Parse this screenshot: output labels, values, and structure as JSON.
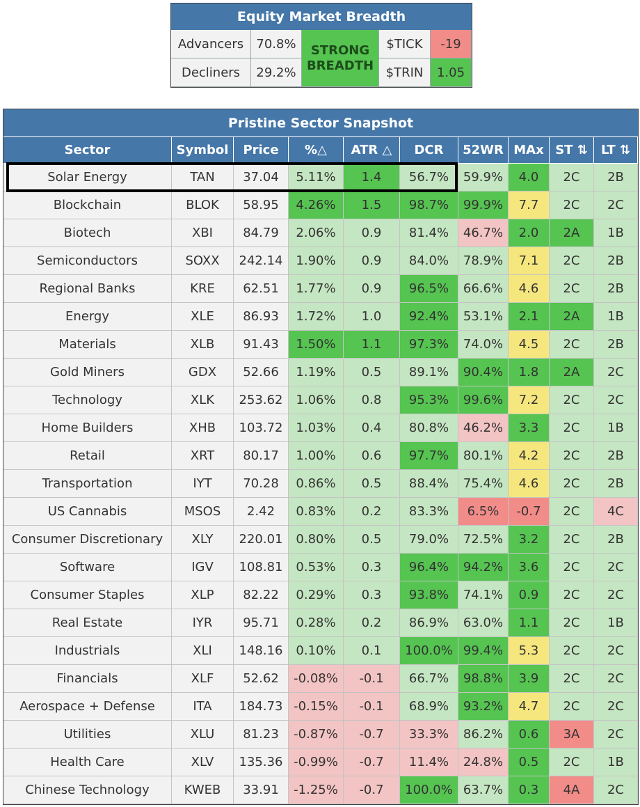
{
  "breadth": {
    "title": "Equity Market Breadth",
    "advancers_label": "Advancers",
    "advancers_value": "70.8%",
    "decliners_label": "Decliners",
    "decliners_value": "29.2%",
    "status_line1": "STRONG",
    "status_line2": "BREADTH",
    "tick_label": "$TICK",
    "tick_value": "-19",
    "trin_label": "$TRIN",
    "trin_value": "1.05"
  },
  "snapshot": {
    "title": "Pristine Sector Snapshot",
    "headers": [
      "Sector",
      "Symbol",
      "Price",
      "%△",
      "ATR △",
      "DCR",
      "52WR",
      "MAx",
      "ST ⇅",
      "LT ⇅"
    ],
    "rows": [
      {
        "sector": "Solar Energy",
        "symbol": "TAN",
        "price": "37.04",
        "pct": "5.11%",
        "atr": "1.4",
        "dcr": "56.7%",
        "wr": "59.9%",
        "max": "4.0",
        "st": "2C",
        "lt": "2B",
        "colors": [
          "lg",
          "g",
          "lg",
          "lg",
          "g",
          "lg",
          "lg"
        ]
      },
      {
        "sector": "Blockchain",
        "symbol": "BLOK",
        "price": "58.95",
        "pct": "4.26%",
        "atr": "1.5",
        "dcr": "98.7%",
        "wr": "99.9%",
        "max": "7.7",
        "st": "2C",
        "lt": "2C",
        "colors": [
          "g",
          "g",
          "g",
          "g",
          "y",
          "lg",
          "lg"
        ]
      },
      {
        "sector": "Biotech",
        "symbol": "XBI",
        "price": "84.79",
        "pct": "2.06%",
        "atr": "0.9",
        "dcr": "81.4%",
        "wr": "46.7%",
        "max": "2.0",
        "st": "2A",
        "lt": "1B",
        "colors": [
          "lg",
          "lg",
          "lg",
          "lr",
          "g",
          "g",
          "lg"
        ]
      },
      {
        "sector": "Semiconductors",
        "symbol": "SOXX",
        "price": "242.14",
        "pct": "1.90%",
        "atr": "0.9",
        "dcr": "84.0%",
        "wr": "78.9%",
        "max": "7.1",
        "st": "2C",
        "lt": "2B",
        "colors": [
          "lg",
          "lg",
          "lg",
          "lg",
          "y",
          "lg",
          "lg"
        ]
      },
      {
        "sector": "Regional Banks",
        "symbol": "KRE",
        "price": "62.51",
        "pct": "1.77%",
        "atr": "0.9",
        "dcr": "96.5%",
        "wr": "66.6%",
        "max": "4.6",
        "st": "2C",
        "lt": "2B",
        "colors": [
          "lg",
          "lg",
          "g",
          "lg",
          "y",
          "lg",
          "lg"
        ]
      },
      {
        "sector": "Energy",
        "symbol": "XLE",
        "price": "86.93",
        "pct": "1.72%",
        "atr": "1.0",
        "dcr": "92.4%",
        "wr": "53.1%",
        "max": "2.1",
        "st": "2A",
        "lt": "1B",
        "colors": [
          "lg",
          "lg",
          "g",
          "lg",
          "g",
          "g",
          "lg"
        ]
      },
      {
        "sector": "Materials",
        "symbol": "XLB",
        "price": "91.43",
        "pct": "1.50%",
        "atr": "1.1",
        "dcr": "97.3%",
        "wr": "74.0%",
        "max": "4.5",
        "st": "2C",
        "lt": "2B",
        "colors": [
          "g",
          "g",
          "g",
          "lg",
          "y",
          "lg",
          "lg"
        ]
      },
      {
        "sector": "Gold Miners",
        "symbol": "GDX",
        "price": "52.66",
        "pct": "1.19%",
        "atr": "0.5",
        "dcr": "89.1%",
        "wr": "90.4%",
        "max": "1.8",
        "st": "2A",
        "lt": "2C",
        "colors": [
          "lg",
          "lg",
          "lg",
          "g",
          "g",
          "g",
          "lg"
        ]
      },
      {
        "sector": "Technology",
        "symbol": "XLK",
        "price": "253.62",
        "pct": "1.06%",
        "atr": "0.8",
        "dcr": "95.3%",
        "wr": "99.6%",
        "max": "7.2",
        "st": "2C",
        "lt": "2C",
        "colors": [
          "lg",
          "lg",
          "g",
          "g",
          "y",
          "lg",
          "lg"
        ]
      },
      {
        "sector": "Home Builders",
        "symbol": "XHB",
        "price": "103.72",
        "pct": "1.03%",
        "atr": "0.4",
        "dcr": "80.8%",
        "wr": "46.2%",
        "max": "3.3",
        "st": "2C",
        "lt": "1B",
        "colors": [
          "lg",
          "lg",
          "lg",
          "lr",
          "g",
          "lg",
          "lg"
        ]
      },
      {
        "sector": "Retail",
        "symbol": "XRT",
        "price": "80.17",
        "pct": "1.00%",
        "atr": "0.6",
        "dcr": "97.7%",
        "wr": "80.1%",
        "max": "4.2",
        "st": "2C",
        "lt": "2B",
        "colors": [
          "lg",
          "lg",
          "g",
          "lg",
          "y",
          "lg",
          "lg"
        ]
      },
      {
        "sector": "Transportation",
        "symbol": "IYT",
        "price": "70.28",
        "pct": "0.86%",
        "atr": "0.5",
        "dcr": "88.4%",
        "wr": "75.4%",
        "max": "4.6",
        "st": "2C",
        "lt": "2B",
        "colors": [
          "lg",
          "lg",
          "lg",
          "lg",
          "y",
          "lg",
          "lg"
        ]
      },
      {
        "sector": "US Cannabis",
        "symbol": "MSOS",
        "price": "2.42",
        "pct": "0.83%",
        "atr": "0.2",
        "dcr": "83.3%",
        "wr": "6.5%",
        "max": "-0.7",
        "st": "2C",
        "lt": "4C",
        "colors": [
          "lg",
          "lg",
          "lg",
          "r",
          "r",
          "lg",
          "lr"
        ]
      },
      {
        "sector": "Consumer Discretionary",
        "symbol": "XLY",
        "price": "220.01",
        "pct": "0.80%",
        "atr": "0.5",
        "dcr": "79.0%",
        "wr": "72.5%",
        "max": "3.2",
        "st": "2C",
        "lt": "2B",
        "colors": [
          "lg",
          "lg",
          "lg",
          "lg",
          "g",
          "lg",
          "lg"
        ]
      },
      {
        "sector": "Software",
        "symbol": "IGV",
        "price": "108.81",
        "pct": "0.53%",
        "atr": "0.3",
        "dcr": "96.4%",
        "wr": "94.2%",
        "max": "3.6",
        "st": "2C",
        "lt": "2C",
        "colors": [
          "lg",
          "lg",
          "g",
          "g",
          "g",
          "lg",
          "lg"
        ]
      },
      {
        "sector": "Consumer Staples",
        "symbol": "XLP",
        "price": "82.22",
        "pct": "0.29%",
        "atr": "0.3",
        "dcr": "93.8%",
        "wr": "74.1%",
        "max": "0.9",
        "st": "2C",
        "lt": "2C",
        "colors": [
          "lg",
          "lg",
          "g",
          "lg",
          "g",
          "lg",
          "lg"
        ]
      },
      {
        "sector": "Real Estate",
        "symbol": "IYR",
        "price": "95.71",
        "pct": "0.28%",
        "atr": "0.2",
        "dcr": "86.9%",
        "wr": "63.0%",
        "max": "1.1",
        "st": "2C",
        "lt": "1B",
        "colors": [
          "lg",
          "lg",
          "lg",
          "lg",
          "g",
          "lg",
          "lg"
        ]
      },
      {
        "sector": "Industrials",
        "symbol": "XLI",
        "price": "148.16",
        "pct": "0.10%",
        "atr": "0.1",
        "dcr": "100.0%",
        "wr": "99.4%",
        "max": "5.3",
        "st": "2C",
        "lt": "2C",
        "colors": [
          "lg",
          "lg",
          "g",
          "g",
          "y",
          "lg",
          "lg"
        ]
      },
      {
        "sector": "Financials",
        "symbol": "XLF",
        "price": "52.62",
        "pct": "-0.08%",
        "atr": "-0.1",
        "dcr": "66.7%",
        "wr": "98.8%",
        "max": "3.9",
        "st": "2C",
        "lt": "2C",
        "colors": [
          "lr",
          "lr",
          "lg",
          "g",
          "g",
          "lg",
          "lg"
        ]
      },
      {
        "sector": "Aerospace + Defense",
        "symbol": "ITA",
        "price": "184.73",
        "pct": "-0.15%",
        "atr": "-0.1",
        "dcr": "68.9%",
        "wr": "93.2%",
        "max": "4.7",
        "st": "2C",
        "lt": "2C",
        "colors": [
          "lr",
          "lr",
          "lg",
          "g",
          "y",
          "lg",
          "lg"
        ]
      },
      {
        "sector": "Utilities",
        "symbol": "XLU",
        "price": "81.23",
        "pct": "-0.87%",
        "atr": "-0.7",
        "dcr": "33.3%",
        "wr": "86.2%",
        "max": "0.6",
        "st": "3A",
        "lt": "2C",
        "colors": [
          "lr",
          "lr",
          "lr",
          "lg",
          "g",
          "r",
          "lg"
        ]
      },
      {
        "sector": "Health Care",
        "symbol": "XLV",
        "price": "135.36",
        "pct": "-0.99%",
        "atr": "-0.7",
        "dcr": "11.4%",
        "wr": "24.8%",
        "max": "0.5",
        "st": "2C",
        "lt": "1B",
        "colors": [
          "lr",
          "lr",
          "lr",
          "lr",
          "g",
          "lg",
          "lg"
        ]
      },
      {
        "sector": "Chinese Technology",
        "symbol": "KWEB",
        "price": "33.91",
        "pct": "-1.25%",
        "atr": "-0.7",
        "dcr": "100.0%",
        "wr": "63.7%",
        "max": "0.3",
        "st": "4A",
        "lt": "2C",
        "colors": [
          "lr",
          "lr",
          "g",
          "lg",
          "g",
          "r",
          "lg"
        ]
      }
    ]
  },
  "colors": {
    "header_blue": "#4577a8",
    "light_green": "#c5e6c2",
    "green": "#55c451",
    "light_red": "#f3c4c4",
    "red": "#f28c88",
    "yellow": "#f5e77e"
  }
}
